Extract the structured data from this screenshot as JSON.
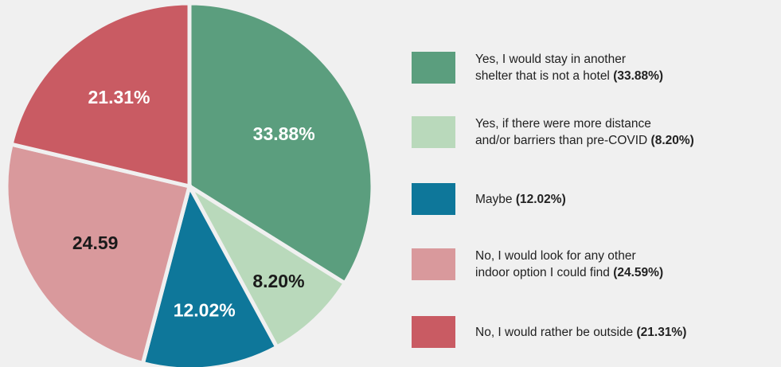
{
  "chart_data": {
    "type": "pie",
    "slices": [
      {
        "value": 33.88,
        "label": "33.88%",
        "color": "#5b9e7e",
        "label_color": "#ffffff"
      },
      {
        "value": 8.2,
        "label": "8.20%",
        "color": "#b9d9bb",
        "label_color": "#1a1a1a"
      },
      {
        "value": 12.02,
        "label": "12.02%",
        "color": "#0e779a",
        "label_color": "#ffffff"
      },
      {
        "value": 24.59,
        "label": "24.59",
        "color": "#d9999c",
        "label_color": "#1a1a1a"
      },
      {
        "value": 21.31,
        "label": "21.31%",
        "color": "#c95b63",
        "label_color": "#ffffff"
      }
    ],
    "legend": [
      {
        "line1": "Yes, I would stay in another",
        "line2": "shelter that is not a hotel",
        "value": "(33.88%)",
        "color": "#5b9e7e"
      },
      {
        "line1": "Yes, if there were more distance",
        "line2": "and/or barriers than pre-COVID",
        "value": "(8.20%)",
        "color": "#b9d9bb"
      },
      {
        "line1": "",
        "line2": "Maybe",
        "value": "(12.02%)",
        "color": "#0e779a"
      },
      {
        "line1": "No, I would look for any other",
        "line2": "indoor option I could find",
        "value": "(24.59%)",
        "color": "#d9999c"
      },
      {
        "line1": "",
        "line2": "No, I would rather be outside",
        "value": "(21.31%)",
        "color": "#c95b63"
      }
    ],
    "legend_placement": "right"
  }
}
